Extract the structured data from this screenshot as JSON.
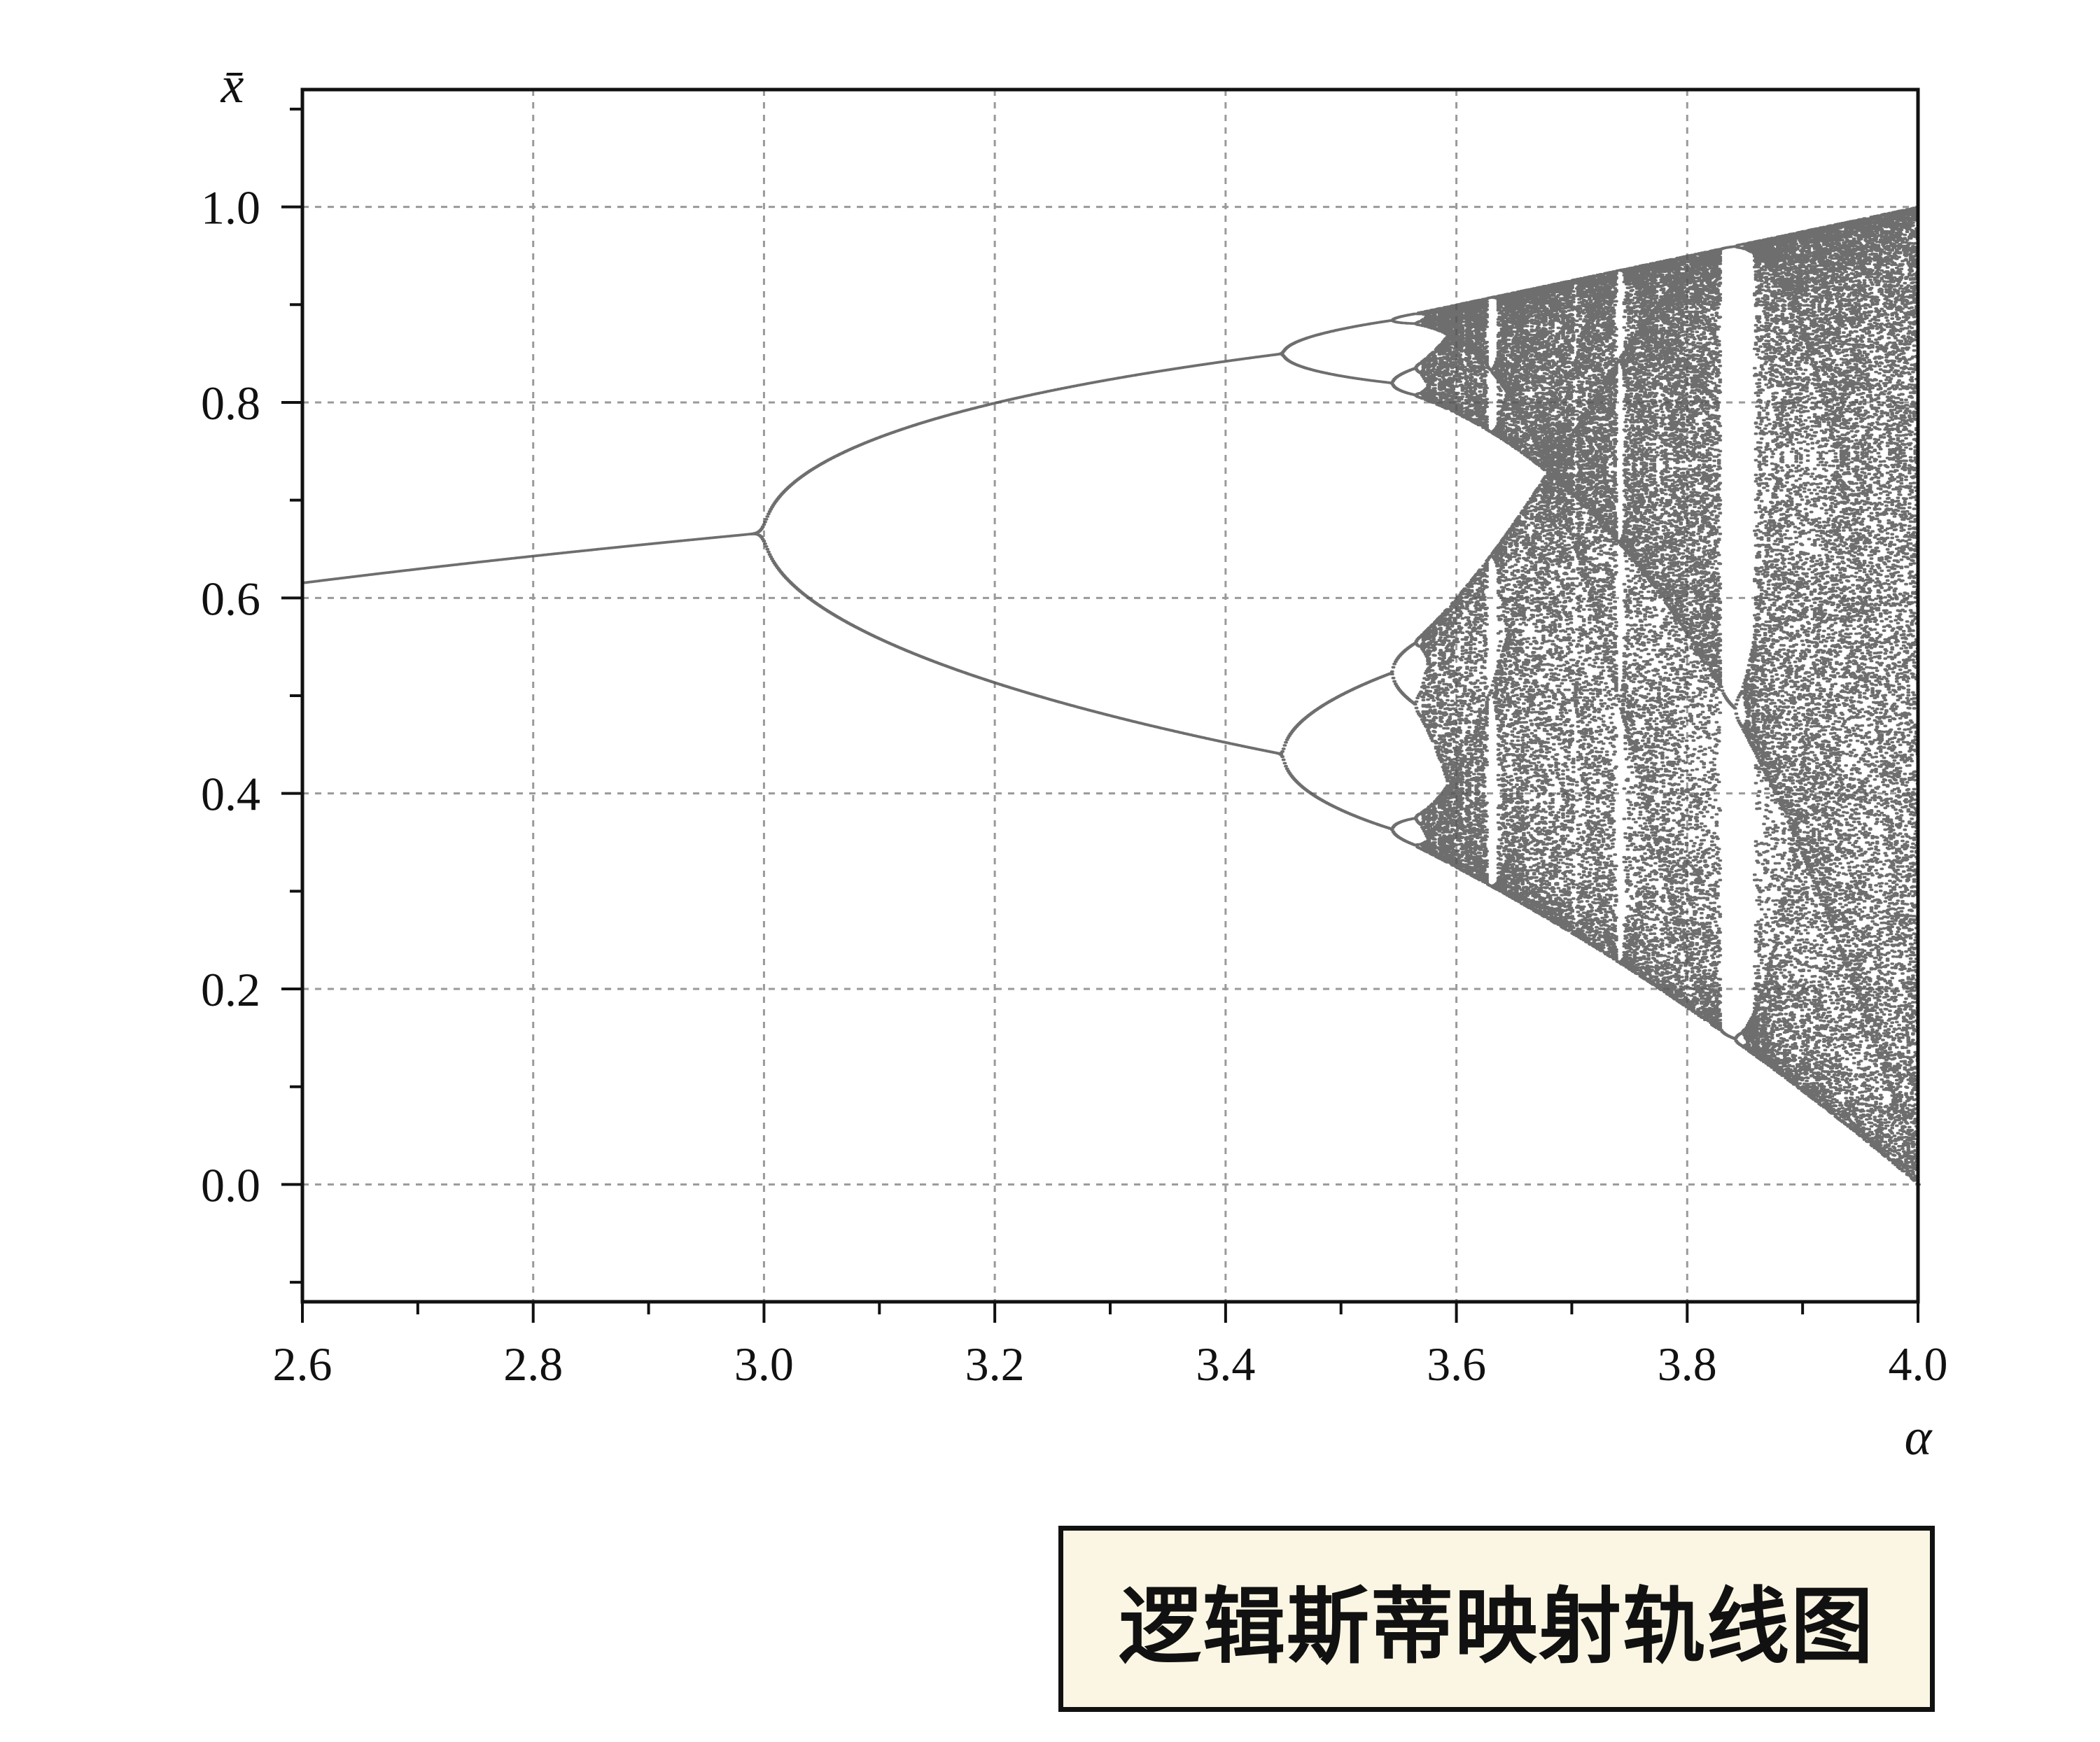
{
  "chart_data": {
    "type": "scatter",
    "title": "",
    "xlabel": "α",
    "ylabel": "x̄",
    "xlim": [
      2.6,
      4.0
    ],
    "ylim": [
      -0.12,
      1.12
    ],
    "x_ticks": [
      "2.6",
      "2.8",
      "3.0",
      "3.2",
      "3.4",
      "3.6",
      "3.8",
      "4.0"
    ],
    "y_ticks": [
      "0.0",
      "0.2",
      "0.4",
      "0.6",
      "0.8",
      "1.0"
    ],
    "grid": true,
    "model": "x_{n+1} = α·x_n·(1 − x_n)",
    "series_color": "#555555",
    "key_points": [
      {
        "x": 2.6,
        "y": 0.615
      },
      {
        "x": 3.0,
        "y": 0.667
      },
      {
        "x": 3.449,
        "y": 0.849
      },
      {
        "x": 3.449,
        "y": 0.44
      },
      {
        "x": 3.544,
        "y": 0.884
      },
      {
        "x": 3.544,
        "y": 0.818
      },
      {
        "x": 3.544,
        "y": 0.523
      },
      {
        "x": 3.544,
        "y": 0.364
      },
      {
        "x": 3.569,
        "y": 0.892
      },
      {
        "x": 3.569,
        "y": 0.345
      },
      {
        "x": 4.0,
        "y": 1.0
      },
      {
        "x": 4.0,
        "y": 0.0
      }
    ]
  },
  "caption": {
    "text": "逻辑斯蒂映射轨线图"
  }
}
